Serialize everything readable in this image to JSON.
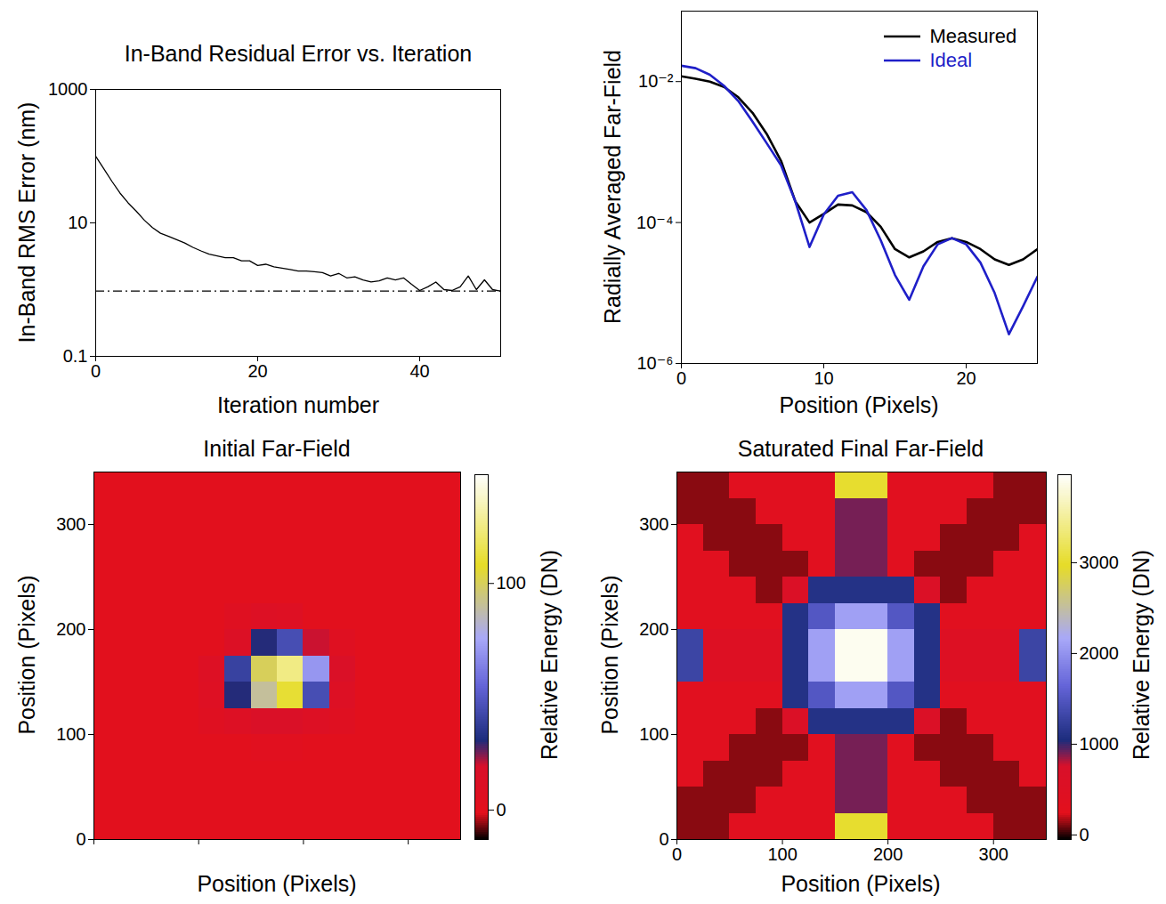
{
  "chart_data": [
    {
      "type": "line",
      "title": "In-Band Residual Error vs. Iteration",
      "x_label": "Iteration number",
      "y_label": "In-Band RMS Error (nm)",
      "log": "y",
      "xlim": [
        0,
        50
      ],
      "ylim": [
        0.1,
        1000
      ],
      "xticks": [
        0,
        20,
        40
      ],
      "yticks": [
        0.1,
        10,
        1000
      ],
      "color": "#000000",
      "x": [
        0,
        1,
        2,
        3,
        4,
        5,
        6,
        7,
        8,
        9,
        10,
        11,
        12,
        13,
        14,
        15,
        16,
        17,
        18,
        19,
        20,
        21,
        22,
        23,
        24,
        25,
        26,
        27,
        28,
        29,
        30,
        31,
        32,
        33,
        34,
        35,
        36,
        37,
        38,
        39,
        40,
        41,
        42,
        43,
        44,
        45,
        46,
        47,
        48,
        49,
        50
      ],
      "values": [
        100,
        65,
        42,
        28,
        20,
        15,
        11,
        8.5,
        7,
        6.3,
        5.6,
        5,
        4.3,
        3.8,
        3.4,
        3.2,
        3.0,
        3.0,
        2.7,
        2.7,
        2.3,
        2.4,
        2.2,
        2.1,
        2.0,
        1.9,
        1.9,
        1.85,
        1.8,
        1.6,
        1.75,
        1.5,
        1.55,
        1.4,
        1.3,
        1.35,
        1.5,
        1.4,
        1.5,
        1.2,
        0.97,
        1.1,
        1.3,
        1.0,
        0.97,
        1.1,
        1.6,
        1.0,
        1.4,
        1.0,
        0.95
      ],
      "reference_value": 0.95
    },
    {
      "type": "line",
      "x_label": "Position (Pixels)",
      "y_label": "Radially Averaged Far-Field",
      "log": "y",
      "xlim": [
        0,
        25
      ],
      "ylim": [
        1e-06,
        0.1
      ],
      "xticks": [
        0,
        10,
        20
      ],
      "yticks": [
        {
          "value": 0.01,
          "label": "10⁻²"
        },
        {
          "value": 0.0001,
          "label": "10⁻⁴"
        },
        {
          "value": 1e-06,
          "label": "10⁻⁶"
        }
      ],
      "legend": "top-right",
      "x": [
        0,
        1,
        2,
        3,
        4,
        5,
        6,
        7,
        8,
        9,
        10,
        11,
        12,
        13,
        14,
        15,
        16,
        17,
        18,
        19,
        20,
        21,
        22,
        23,
        24,
        25
      ],
      "series": [
        {
          "name": "Measured",
          "color": "#000000",
          "values": [
            0.0119,
            0.011,
            0.01,
            0.0084,
            0.006,
            0.0036,
            0.0018,
            0.00075,
            0.0002,
            0.0001,
            0.000133,
            0.00018,
            0.000175,
            0.00014,
            8.7e-05,
            4.2e-05,
            3.2e-05,
            3.9e-05,
            5.3e-05,
            6e-05,
            5.3e-05,
            4.2e-05,
            3e-05,
            2.5e-05,
            3e-05,
            4.2e-05
          ]
        },
        {
          "name": "Ideal",
          "color": "#1f1fc8",
          "values": [
            0.0168,
            0.0155,
            0.0125,
            0.0087,
            0.0053,
            0.0027,
            0.00133,
            0.00065,
            0.0002,
            4.5e-05,
            0.00013,
            0.00024,
            0.00027,
            0.00015,
            5.6e-05,
            1.8e-05,
            8e-06,
            2.4e-05,
            4.9e-05,
            6e-05,
            4.9e-05,
            2.7e-05,
            1e-05,
            2.6e-06,
            6.5e-06,
            1.7e-05
          ]
        }
      ]
    },
    {
      "type": "heatmap",
      "title": "Initial Far-Field",
      "x_label": "Position (Pixels)",
      "y_label": "Position (Pixels)",
      "xlim": [
        0,
        350
      ],
      "ylim": [
        0,
        350
      ],
      "xticks": [
        0,
        100,
        200,
        300
      ],
      "yticks": [
        0,
        100,
        200,
        300
      ],
      "tick_labels": "y",
      "x_bins": [
        0,
        25,
        50,
        75,
        100,
        125,
        150,
        175,
        200,
        225,
        250,
        275,
        300,
        325,
        350
      ],
      "y_bins": [
        0,
        25,
        50,
        75,
        100,
        125,
        150,
        175,
        200,
        225,
        250,
        275,
        300,
        325,
        350
      ],
      "cells": [
        [
          0,
          0,
          0,
          0,
          0,
          0,
          0,
          0,
          0,
          0,
          0,
          0,
          0,
          0
        ],
        [
          0,
          0,
          0,
          0,
          0,
          0,
          0,
          0,
          0,
          0,
          0,
          0,
          0,
          0
        ],
        [
          0,
          0,
          0,
          0,
          0,
          0,
          0,
          0,
          0,
          0,
          0,
          0,
          0,
          0
        ],
        [
          0,
          0,
          0,
          0,
          0,
          0,
          3,
          3,
          0,
          0,
          0,
          0,
          0,
          0
        ],
        [
          0,
          0,
          0,
          0,
          5,
          10,
          15,
          15,
          10,
          5,
          0,
          0,
          0,
          0
        ],
        [
          0,
          0,
          0,
          0,
          8,
          30,
          90,
          110,
          45,
          10,
          0,
          0,
          0,
          0
        ],
        [
          0,
          0,
          0,
          0,
          10,
          40,
          100,
          125,
          70,
          15,
          0,
          0,
          0,
          0
        ],
        [
          0,
          0,
          0,
          0,
          0,
          12,
          30,
          45,
          20,
          5,
          0,
          0,
          0,
          0
        ],
        [
          0,
          0,
          0,
          0,
          0,
          5,
          10,
          8,
          0,
          0,
          0,
          0,
          0,
          0
        ],
        [
          0,
          0,
          0,
          0,
          0,
          0,
          0,
          0,
          0,
          0,
          0,
          0,
          0,
          0
        ],
        [
          0,
          0,
          0,
          0,
          0,
          0,
          0,
          0,
          0,
          0,
          0,
          0,
          0,
          0
        ],
        [
          0,
          0,
          0,
          0,
          0,
          0,
          0,
          0,
          0,
          0,
          0,
          0,
          0,
          0
        ],
        [
          0,
          0,
          0,
          0,
          0,
          0,
          0,
          0,
          0,
          0,
          0,
          0,
          0,
          0
        ],
        [
          0,
          0,
          0,
          0,
          0,
          0,
          0,
          0,
          0,
          0,
          0,
          0,
          0,
          0
        ]
      ],
      "colorbar": {
        "label": "Relative Energy (DN)",
        "range": [
          -13,
          148
        ],
        "ticks": [
          0,
          100
        ]
      }
    },
    {
      "type": "heatmap",
      "title": "Saturated Final Far-Field",
      "x_label": "Position (Pixels)",
      "y_label": "Position (Pixels)",
      "xlim": [
        0,
        350
      ],
      "ylim": [
        0,
        350
      ],
      "xticks": [
        0,
        100,
        200,
        300
      ],
      "yticks": [
        0,
        100,
        200,
        300
      ],
      "x_bins": [
        0,
        25,
        50,
        75,
        100,
        125,
        150,
        175,
        200,
        225,
        250,
        275,
        300,
        325,
        350
      ],
      "y_bins": [
        0,
        25,
        50,
        75,
        100,
        125,
        150,
        175,
        200,
        225,
        250,
        275,
        300,
        325,
        350
      ],
      "cells": [
        [
          120,
          120,
          350,
          350,
          350,
          350,
          3000,
          3000,
          350,
          350,
          350,
          350,
          120,
          120
        ],
        [
          120,
          120,
          120,
          350,
          350,
          350,
          900,
          900,
          350,
          350,
          350,
          120,
          120,
          120
        ],
        [
          350,
          120,
          120,
          120,
          350,
          350,
          900,
          900,
          350,
          350,
          120,
          120,
          120,
          350
        ],
        [
          350,
          350,
          120,
          120,
          120,
          350,
          900,
          900,
          350,
          120,
          120,
          120,
          350,
          350
        ],
        [
          350,
          350,
          350,
          120,
          600,
          1100,
          1100,
          1100,
          1100,
          600,
          120,
          350,
          350,
          350
        ],
        [
          350,
          350,
          350,
          350,
          1100,
          1500,
          2100,
          2100,
          1500,
          1100,
          350,
          350,
          350,
          350
        ],
        [
          1300,
          500,
          500,
          500,
          1100,
          2100,
          3900,
          3900,
          2100,
          1100,
          500,
          500,
          500,
          1300
        ],
        [
          1300,
          500,
          500,
          500,
          1100,
          2100,
          3900,
          3900,
          2100,
          1100,
          500,
          500,
          500,
          1300
        ],
        [
          350,
          350,
          350,
          350,
          1100,
          1500,
          2100,
          2100,
          1500,
          1100,
          350,
          350,
          350,
          350
        ],
        [
          350,
          350,
          350,
          120,
          600,
          1100,
          1100,
          1100,
          1100,
          600,
          120,
          350,
          350,
          350
        ],
        [
          350,
          350,
          120,
          120,
          120,
          350,
          900,
          900,
          350,
          120,
          120,
          120,
          350,
          350
        ],
        [
          350,
          120,
          120,
          120,
          350,
          350,
          900,
          900,
          350,
          350,
          120,
          120,
          120,
          350
        ],
        [
          120,
          120,
          120,
          350,
          350,
          350,
          900,
          900,
          350,
          350,
          350,
          120,
          120,
          120
        ],
        [
          120,
          120,
          350,
          350,
          350,
          350,
          3000,
          3000,
          350,
          350,
          350,
          350,
          120,
          120
        ]
      ],
      "colorbar": {
        "label": "Relative Energy (DN)",
        "range": [
          -50,
          3970
        ],
        "ticks": [
          0,
          1000,
          2000,
          3000
        ]
      }
    }
  ]
}
